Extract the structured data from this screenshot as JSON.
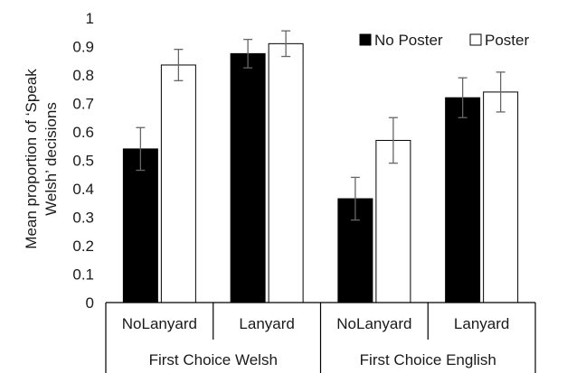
{
  "chart_data": {
    "type": "bar",
    "title": "",
    "ylabel": "Mean proportion of 'Speak Welsh' decisions",
    "ylabel_lines": [
      "Mean proportion of ‘Speak",
      "Welsh’ decisions"
    ],
    "xlabel": "",
    "ylim": [
      0,
      1
    ],
    "yticks": [
      "0",
      "0.1",
      "0.2",
      "0.3",
      "0.4",
      "0.5",
      "0.6",
      "0.7",
      "0.8",
      "0.9",
      "1"
    ],
    "ytick_values": [
      0,
      0.1,
      0.2,
      0.3,
      0.4,
      0.5,
      0.6,
      0.7,
      0.8,
      0.9,
      1
    ],
    "categories": [
      "NoLanyard",
      "Lanyard",
      "NoLanyard",
      "Lanyard"
    ],
    "groups": [
      {
        "label": "First Choice Welsh",
        "categories": [
          0,
          1
        ]
      },
      {
        "label": "First Choice English",
        "categories": [
          2,
          3
        ]
      }
    ],
    "series": [
      {
        "name": "No Poster",
        "color": "#000000",
        "values": [
          0.54,
          0.875,
          0.365,
          0.72
        ],
        "errors": [
          0.075,
          0.05,
          0.075,
          0.07
        ]
      },
      {
        "name": "Poster",
        "color": "#ffffff",
        "values": [
          0.835,
          0.91,
          0.57,
          0.74
        ],
        "errors": [
          0.055,
          0.045,
          0.08,
          0.07
        ]
      }
    ],
    "legend_position": "top-right",
    "grid": false
  }
}
